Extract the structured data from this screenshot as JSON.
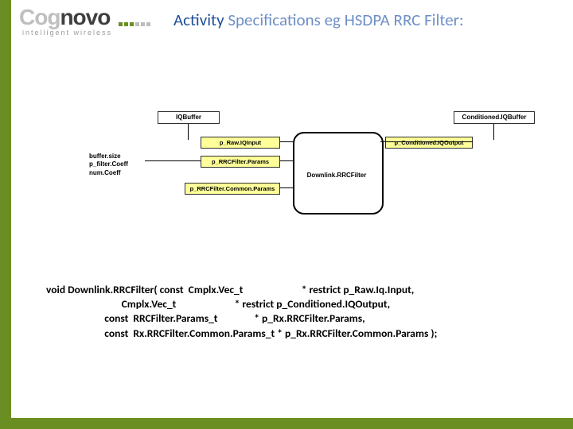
{
  "logo": {
    "part1": "Cog",
    "part2": "novo",
    "sub": "intelligent wireless"
  },
  "title": {
    "strong": "Activity",
    "light": " Specifications eg HSDPA RRC Filter:"
  },
  "diagram": {
    "iqbuffer": "IQBuffer",
    "condbuffer": "Conditioned.IQBuffer",
    "side": {
      "l1": "buffer.size",
      "l2": "p_filter.Coeff",
      "l3": "num.Coeff"
    },
    "p_raw": "p_Raw.IQInput",
    "p_cond": "p_Conditioned.IQOutput",
    "p_rrc": "p_RRCFilter.Params",
    "p_common": "p_RRCFilter.Common.Params",
    "block": "Downlink.RRCFilter"
  },
  "code": {
    "sig": "void Downlink.RRCFilter(",
    "t1": " const  Cmplx.Vec_t",
    "r1": "* restrict p_Raw.Iq.Input,",
    "t2": "        Cmplx.Vec_t",
    "r2": "* restrict p_Conditioned.IQOutput,",
    "t3": " const  RRCFilter.Params_t",
    "r3": "* p_Rx.RRCFilter.Params,",
    "t4": " const  Rx.RRCFilter.Common.Params_t",
    "r4": "* p_Rx.RRCFilter.Common.Params );"
  }
}
